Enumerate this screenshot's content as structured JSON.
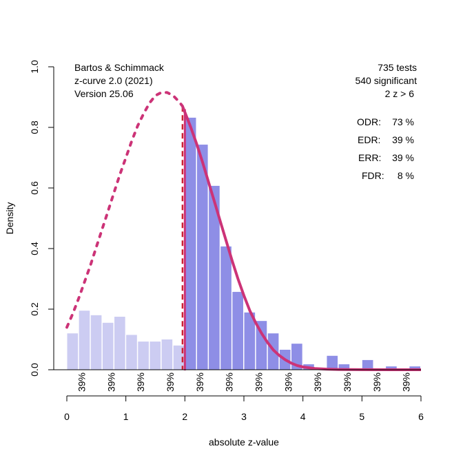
{
  "chart_data": {
    "type": "bar",
    "title": "",
    "xlabel": "absolute z-value",
    "ylabel": "Density",
    "xlim": [
      0,
      6
    ],
    "ylim": [
      0,
      1
    ],
    "x_ticks": [
      "0",
      "1",
      "2",
      "3",
      "4",
      "5",
      "6"
    ],
    "y_ticks": [
      "0.0",
      "0.2",
      "0.4",
      "0.6",
      "0.8",
      "1.0"
    ],
    "grid": false,
    "bin_width": 0.2,
    "significance_threshold": 1.96,
    "bins": {
      "start": [
        0.0,
        0.2,
        0.4,
        0.6,
        0.8,
        1.0,
        1.2,
        1.4,
        1.6,
        1.8,
        2.0,
        2.2,
        2.4,
        2.6,
        2.8,
        3.0,
        3.2,
        3.4,
        3.6,
        3.8,
        4.0,
        4.2,
        4.4,
        4.6,
        4.8,
        5.0,
        5.2,
        5.4,
        5.6,
        5.8
      ],
      "density": [
        0.12,
        0.195,
        0.18,
        0.155,
        0.175,
        0.115,
        0.093,
        0.093,
        0.1,
        0.08,
        0.832,
        0.743,
        0.607,
        0.407,
        0.257,
        0.189,
        0.161,
        0.12,
        0.066,
        0.086,
        0.018,
        0.005,
        0.046,
        0.018,
        0.0,
        0.032,
        0.0,
        0.011,
        0.0,
        0.011
      ]
    },
    "series": [
      {
        "name": "fitted density (significant)",
        "style": "solid",
        "x": [
          1.96,
          2.1,
          2.2,
          2.3,
          2.4,
          2.5,
          2.6,
          2.7,
          2.8,
          2.9,
          3.0,
          3.1,
          3.2,
          3.3,
          3.4,
          3.5,
          3.6,
          3.7,
          3.8,
          3.9,
          4.0,
          4.2,
          4.4,
          4.6,
          4.8,
          5.0,
          5.5,
          6.0
        ],
        "y": [
          0.87,
          0.8,
          0.745,
          0.685,
          0.62,
          0.555,
          0.49,
          0.425,
          0.36,
          0.3,
          0.245,
          0.195,
          0.155,
          0.12,
          0.09,
          0.065,
          0.047,
          0.033,
          0.022,
          0.014,
          0.009,
          0.004,
          0.002,
          0.001,
          0.0005,
          0.0002,
          0.0,
          0.0
        ]
      },
      {
        "name": "projected density (non-significant)",
        "style": "dotted",
        "x": [
          0.0,
          0.1,
          0.2,
          0.3,
          0.4,
          0.5,
          0.6,
          0.7,
          0.8,
          0.9,
          1.0,
          1.1,
          1.2,
          1.3,
          1.4,
          1.5,
          1.6,
          1.7,
          1.8,
          1.9,
          1.96
        ],
        "y": [
          0.14,
          0.185,
          0.235,
          0.29,
          0.345,
          0.405,
          0.465,
          0.525,
          0.585,
          0.645,
          0.7,
          0.755,
          0.805,
          0.845,
          0.88,
          0.905,
          0.915,
          0.915,
          0.905,
          0.885,
          0.87
        ]
      }
    ],
    "bin_labels": [
      "39%",
      "39%",
      "39%",
      "39%",
      "39%",
      "39%",
      "39%",
      "39%",
      "39%",
      "39%",
      "39%",
      "39%"
    ],
    "bin_label_x": [
      0.25,
      0.75,
      1.25,
      1.75,
      2.25,
      2.75,
      3.25,
      3.75,
      4.25,
      4.75,
      5.25,
      5.75
    ],
    "annotations_left": [
      "Bartos & Schimmack",
      "z-curve 2.0 (2021)",
      "Version 25.06"
    ],
    "annotations_right": [
      "735 tests",
      "540 significant",
      "2 z > 6"
    ],
    "stats": [
      {
        "label": "ODR:",
        "value": "73 %"
      },
      {
        "label": "EDR:",
        "value": "39 %"
      },
      {
        "label": "ERR:",
        "value": "39 %"
      },
      {
        "label": "FDR:",
        "value": " 8 %"
      }
    ],
    "colors": {
      "nonsig_bar": "#ccccf2",
      "sig_bar": "#8e8ee6",
      "curve": "#cc3377",
      "threshold_line": "#cc2233"
    }
  }
}
